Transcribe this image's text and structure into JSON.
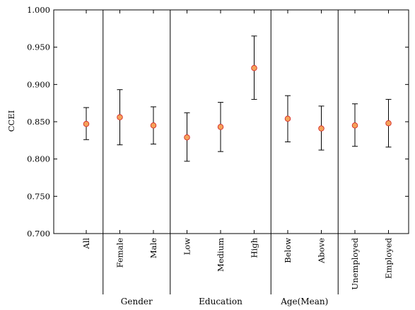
{
  "chart_data": {
    "type": "scatter",
    "ylabel": "CCEI",
    "ylim": [
      0.7,
      1.0
    ],
    "yticks": [
      "0.700",
      "0.750",
      "0.800",
      "0.850",
      "0.900",
      "0.950",
      "1.000"
    ],
    "grid": false,
    "error_bars": true,
    "marker_fill": "#f4a259",
    "marker_edge": "#d62828",
    "points": [
      {
        "label": "All",
        "value": 0.847,
        "low": 0.826,
        "high": 0.869
      },
      {
        "label": "Female",
        "value": 0.856,
        "low": 0.819,
        "high": 0.893
      },
      {
        "label": "Male",
        "value": 0.845,
        "low": 0.82,
        "high": 0.87
      },
      {
        "label": "Low",
        "value": 0.829,
        "low": 0.797,
        "high": 0.862
      },
      {
        "label": "Medium",
        "value": 0.843,
        "low": 0.81,
        "high": 0.876
      },
      {
        "label": "High",
        "value": 0.922,
        "low": 0.88,
        "high": 0.965
      },
      {
        "label": "Below",
        "value": 0.854,
        "low": 0.823,
        "high": 0.885
      },
      {
        "label": "Above",
        "value": 0.841,
        "low": 0.812,
        "high": 0.871
      },
      {
        "label": "Unemployed",
        "value": 0.845,
        "low": 0.817,
        "high": 0.874
      },
      {
        "label": "Employed",
        "value": 0.848,
        "low": 0.816,
        "high": 0.88
      }
    ],
    "groups": [
      {
        "label": "Gender",
        "start": 1,
        "end": 2
      },
      {
        "label": "Education",
        "start": 3,
        "end": 5
      },
      {
        "label": "Age(Mean)",
        "start": 6,
        "end": 7
      },
      {
        "label": "",
        "start": 8,
        "end": 9
      }
    ]
  }
}
